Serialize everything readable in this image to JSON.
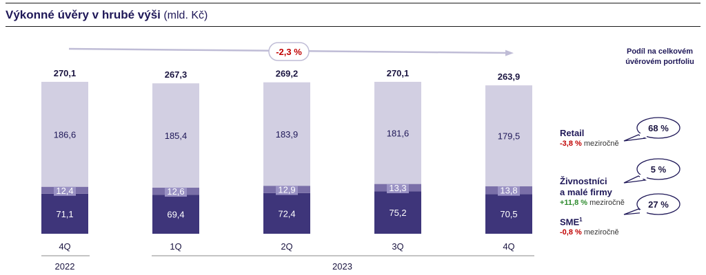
{
  "title": {
    "main": "Výkonné úvěry v hrubé výši",
    "unit": "(mld. Kč)"
  },
  "trend_label": "-2,3 %",
  "share_note": "Podíl na celkovém úvěrovém portfoliu",
  "colors": {
    "retail": "#d2cfe2",
    "small": "#7a6fa8",
    "sme": "#3e357a",
    "neg": "#c00000",
    "pos": "#2e8b2e",
    "dark": "#1f1858"
  },
  "chart_data": {
    "type": "bar",
    "stacked": true,
    "categories": [
      "4Q",
      "1Q",
      "2Q",
      "3Q",
      "4Q"
    ],
    "years": [
      {
        "label": "2022",
        "span": [
          0,
          0
        ]
      },
      {
        "label": "2023",
        "span": [
          1,
          4
        ]
      }
    ],
    "series": [
      {
        "name": "SME",
        "values": [
          71.1,
          69.4,
          72.4,
          75.2,
          70.5
        ]
      },
      {
        "name": "Živnostníci a malé firmy",
        "values": [
          12.4,
          12.6,
          12.9,
          13.3,
          13.8
        ]
      },
      {
        "name": "Retail",
        "values": [
          186.6,
          185.4,
          183.9,
          181.6,
          179.5
        ]
      }
    ],
    "totals": [
      270.1,
      267.3,
      269.2,
      270.1,
      263.9
    ],
    "value_labels": {
      "totals": [
        "270,1",
        "267,3",
        "269,2",
        "270,1",
        "263,9"
      ],
      "SME": [
        "71,1",
        "69,4",
        "72,4",
        "75,2",
        "70,5"
      ],
      "Živnostníci a malé firmy": [
        "12,4",
        "12,6",
        "12,9",
        "13,3",
        "13,8"
      ],
      "Retail": [
        "186,6",
        "185,4",
        "183,9",
        "181,6",
        "179,5"
      ]
    },
    "ylim": [
      0,
      270.1
    ]
  },
  "legend": [
    {
      "name_lines": [
        "Retail"
      ],
      "sup": "",
      "change": "-3,8 %",
      "change_sign": "neg",
      "suffix": "meziročně",
      "share": "68 %"
    },
    {
      "name_lines": [
        "Živnostníci",
        "a malé firmy"
      ],
      "sup": "",
      "change": "+11,8 %",
      "change_sign": "pos",
      "suffix": "meziročně",
      "share": "5 %"
    },
    {
      "name_lines": [
        "SME"
      ],
      "sup": "1",
      "change": "-0,8 %",
      "change_sign": "neg",
      "suffix": "meziročně",
      "share": "27 %"
    }
  ]
}
